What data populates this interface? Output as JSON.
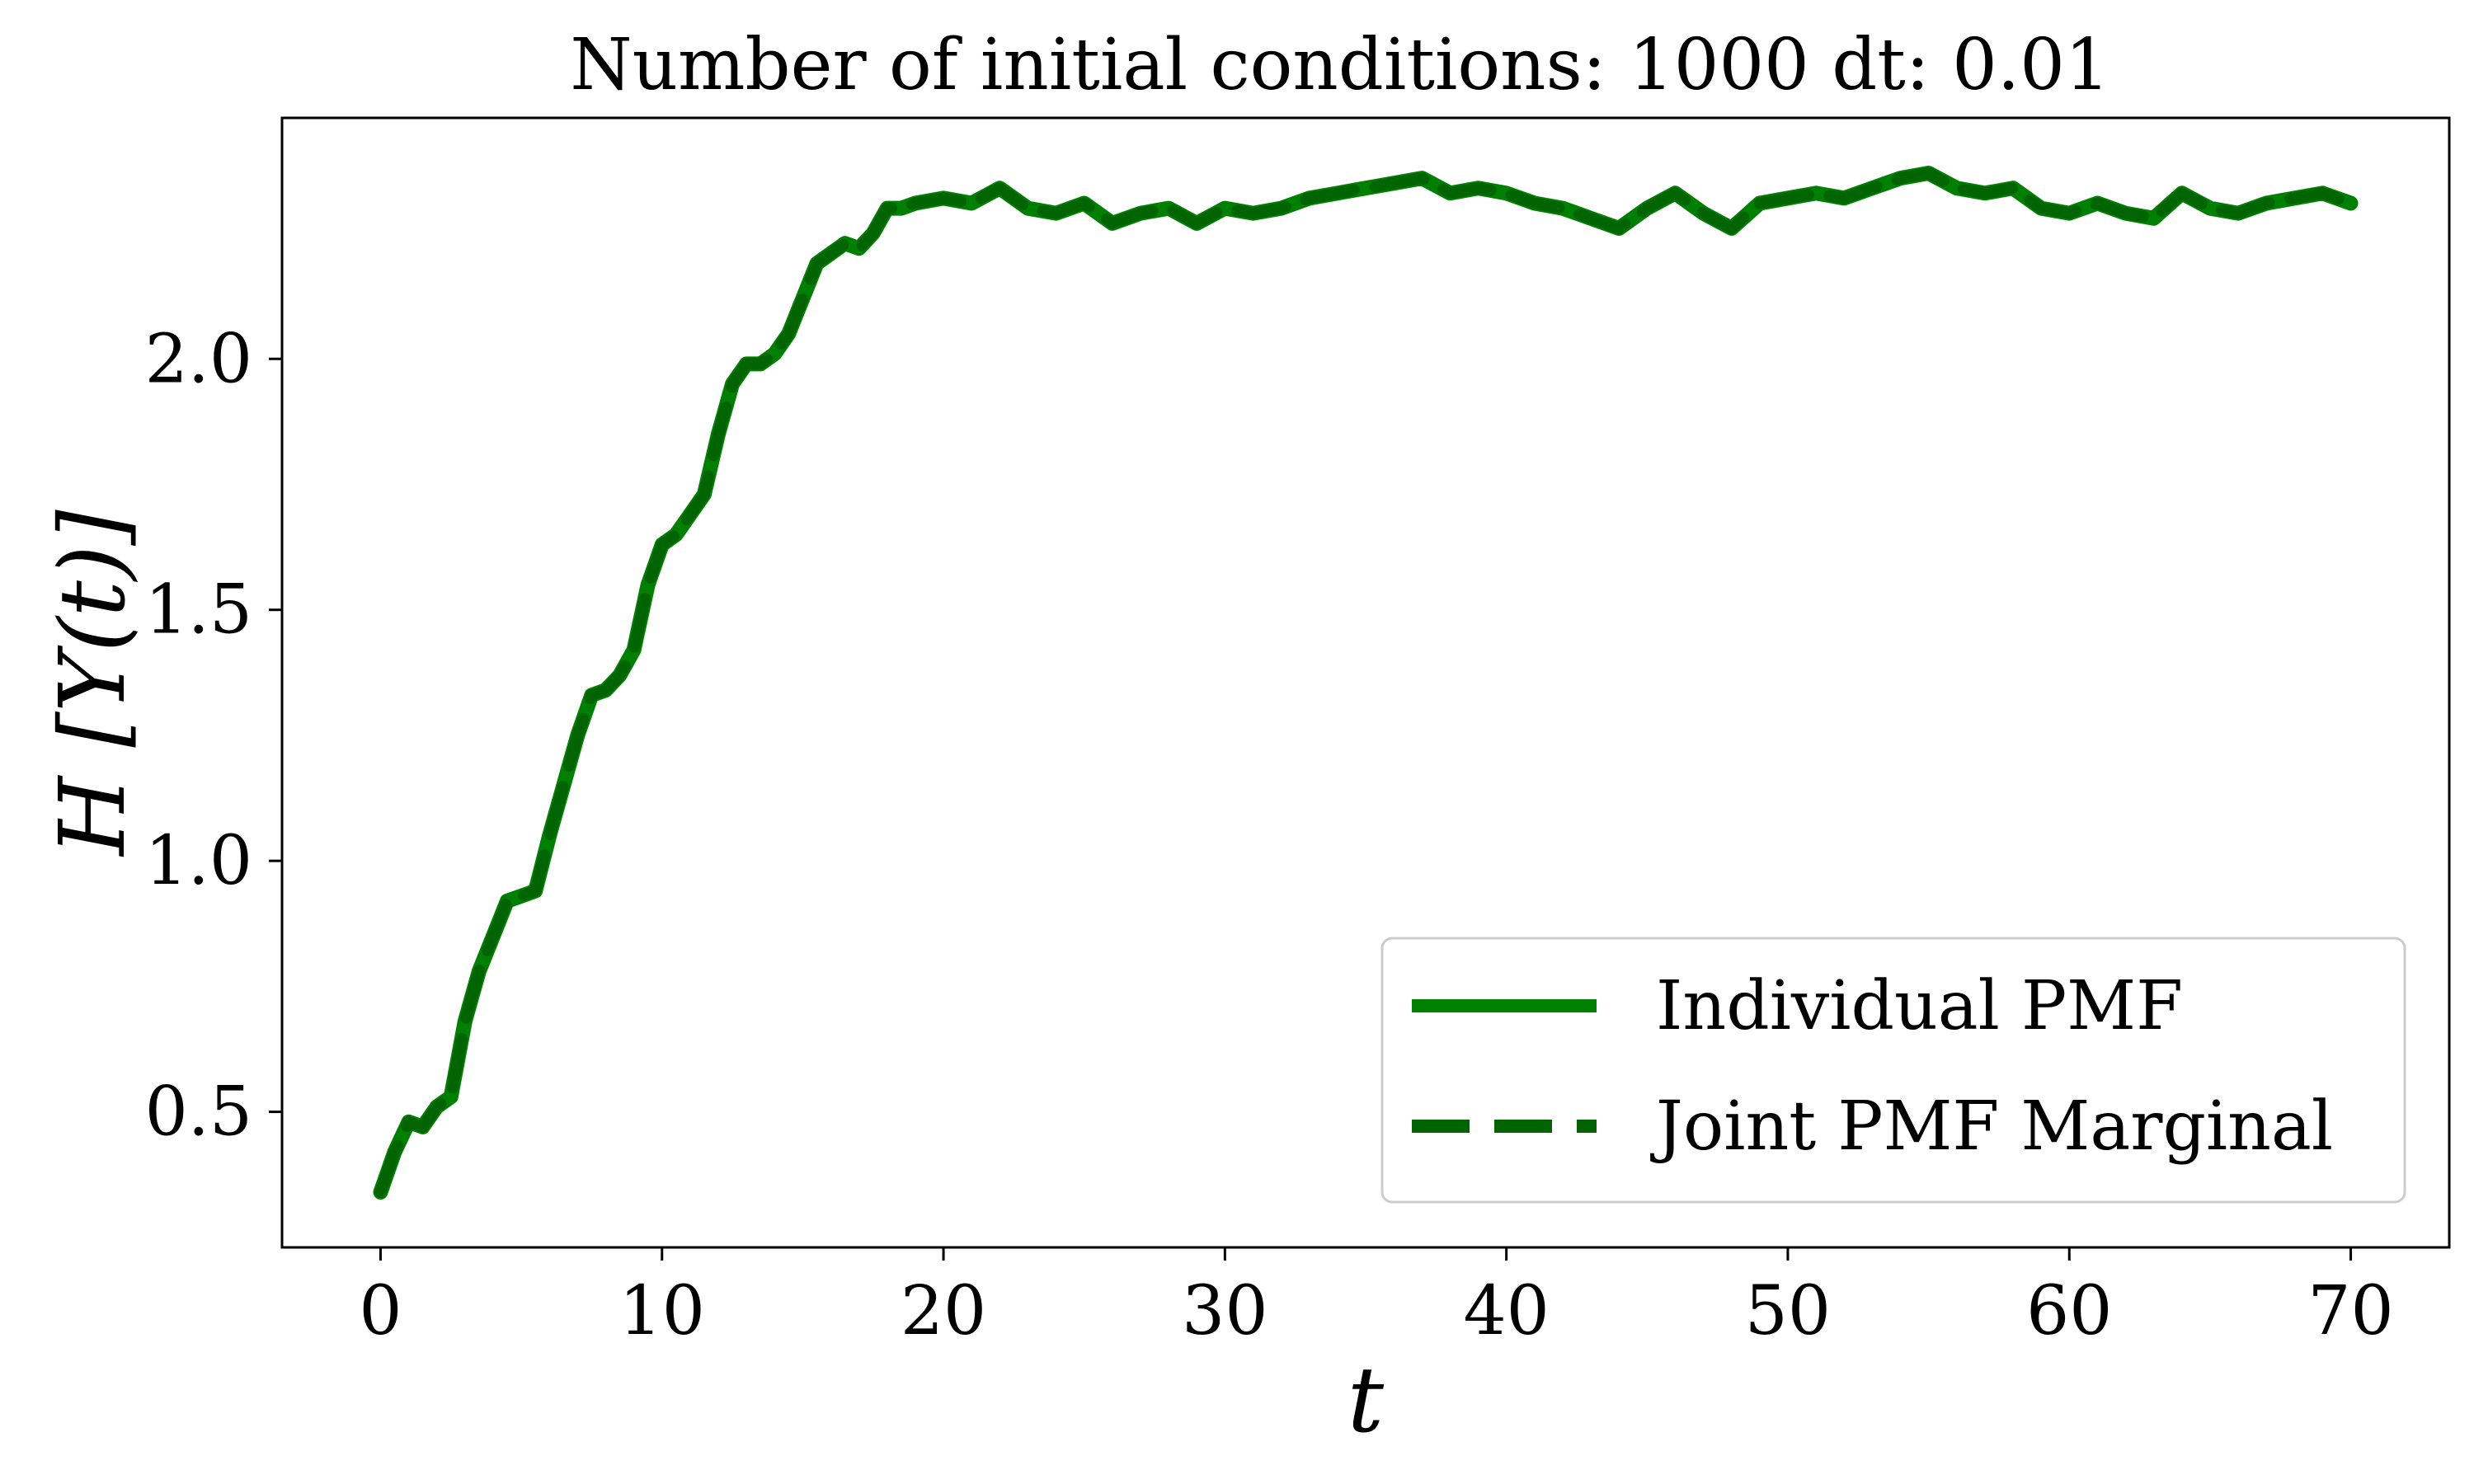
{
  "chart_data": {
    "type": "line",
    "title": "Number of initial conditions: 1000 dt: 0.01",
    "xlabel": "t",
    "ylabel": "H [Y(t)]",
    "xlim": [
      -3.5,
      73.5
    ],
    "ylim": [
      0.23,
      2.48
    ],
    "xticks": [
      0,
      10,
      20,
      30,
      40,
      50,
      60,
      70
    ],
    "yticks": [
      0.5,
      1.0,
      1.5,
      2.0
    ],
    "xtick_labels": [
      "0",
      "10",
      "20",
      "30",
      "40",
      "50",
      "60",
      "70"
    ],
    "ytick_labels": [
      "0.5",
      "1.0",
      "1.5",
      "2.0"
    ],
    "grid": false,
    "legend": {
      "position": "bottom-right",
      "entries": [
        "Individual PMF",
        "Joint PMF Marginal"
      ]
    },
    "series": [
      {
        "name": "Individual PMF",
        "style": "solid",
        "color": "#008000",
        "x": [
          0,
          0.5,
          1,
          1.5,
          2,
          2.5,
          3,
          3.5,
          4,
          4.5,
          5,
          5.5,
          6,
          6.5,
          7,
          7.5,
          8,
          8.5,
          9,
          9.5,
          10,
          10.5,
          11,
          11.5,
          12,
          12.5,
          13,
          13.5,
          14,
          14.5,
          15,
          15.5,
          16,
          16.5,
          17,
          17.5,
          18,
          18.5,
          19,
          20,
          21,
          22,
          23,
          24,
          25,
          26,
          27,
          28,
          29,
          30,
          31,
          32,
          33,
          34,
          35,
          36,
          37,
          38,
          39,
          40,
          41,
          42,
          43,
          44,
          45,
          46,
          47,
          48,
          49,
          50,
          51,
          52,
          53,
          54,
          55,
          56,
          57,
          58,
          59,
          60,
          61,
          62,
          63,
          64,
          65,
          66,
          67,
          68,
          69,
          70
        ],
        "values": [
          0.34,
          0.42,
          0.48,
          0.47,
          0.51,
          0.53,
          0.68,
          0.78,
          0.85,
          0.92,
          0.93,
          0.94,
          1.05,
          1.15,
          1.25,
          1.33,
          1.34,
          1.37,
          1.42,
          1.55,
          1.63,
          1.65,
          1.69,
          1.73,
          1.85,
          1.95,
          1.99,
          1.99,
          2.01,
          2.05,
          2.12,
          2.19,
          2.21,
          2.23,
          2.22,
          2.25,
          2.3,
          2.3,
          2.31,
          2.32,
          2.31,
          2.34,
          2.3,
          2.29,
          2.31,
          2.27,
          2.29,
          2.3,
          2.27,
          2.3,
          2.29,
          2.3,
          2.32,
          2.33,
          2.34,
          2.35,
          2.36,
          2.33,
          2.34,
          2.33,
          2.31,
          2.3,
          2.28,
          2.26,
          2.3,
          2.33,
          2.29,
          2.26,
          2.31,
          2.32,
          2.33,
          2.32,
          2.34,
          2.36,
          2.37,
          2.34,
          2.33,
          2.34,
          2.3,
          2.29,
          2.31,
          2.29,
          2.28,
          2.33,
          2.3,
          2.29,
          2.31,
          2.32,
          2.33,
          2.31
        ]
      },
      {
        "name": "Joint PMF Marginal",
        "style": "dashed",
        "color": "#006400",
        "x": [
          0,
          0.5,
          1,
          1.5,
          2,
          2.5,
          3,
          3.5,
          4,
          4.5,
          5,
          5.5,
          6,
          6.5,
          7,
          7.5,
          8,
          8.5,
          9,
          9.5,
          10,
          10.5,
          11,
          11.5,
          12,
          12.5,
          13,
          13.5,
          14,
          14.5,
          15,
          15.5,
          16,
          16.5,
          17,
          17.5,
          18,
          18.5,
          19,
          20,
          21,
          22,
          23,
          24,
          25,
          26,
          27,
          28,
          29,
          30,
          31,
          32,
          33,
          34,
          35,
          36,
          37,
          38,
          39,
          40,
          41,
          42,
          43,
          44,
          45,
          46,
          47,
          48,
          49,
          50,
          51,
          52,
          53,
          54,
          55,
          56,
          57,
          58,
          59,
          60,
          61,
          62,
          63,
          64,
          65,
          66,
          67,
          68,
          69,
          70
        ],
        "values": [
          0.34,
          0.42,
          0.48,
          0.47,
          0.51,
          0.53,
          0.68,
          0.78,
          0.85,
          0.92,
          0.93,
          0.94,
          1.05,
          1.15,
          1.25,
          1.33,
          1.34,
          1.37,
          1.42,
          1.55,
          1.63,
          1.65,
          1.69,
          1.73,
          1.85,
          1.95,
          1.99,
          1.99,
          2.01,
          2.05,
          2.12,
          2.19,
          2.21,
          2.23,
          2.22,
          2.25,
          2.3,
          2.3,
          2.31,
          2.32,
          2.31,
          2.34,
          2.3,
          2.29,
          2.31,
          2.27,
          2.29,
          2.3,
          2.27,
          2.3,
          2.29,
          2.3,
          2.32,
          2.33,
          2.34,
          2.35,
          2.36,
          2.33,
          2.34,
          2.33,
          2.31,
          2.3,
          2.28,
          2.26,
          2.3,
          2.33,
          2.29,
          2.26,
          2.31,
          2.32,
          2.33,
          2.32,
          2.34,
          2.36,
          2.37,
          2.34,
          2.33,
          2.34,
          2.3,
          2.29,
          2.31,
          2.29,
          2.28,
          2.33,
          2.3,
          2.29,
          2.31,
          2.32,
          2.33,
          2.31
        ]
      }
    ]
  }
}
